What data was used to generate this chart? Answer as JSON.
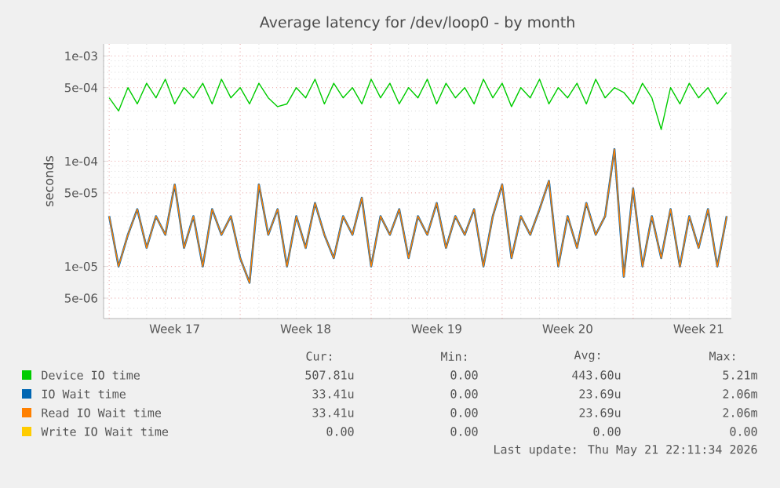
{
  "chart_data": {
    "type": "line",
    "title": "Average latency for /dev/loop0 - by month",
    "ylabel": "seconds",
    "log": true,
    "grid": true,
    "legend": "bottom",
    "ylim": [
      3.2e-06,
      0.0013
    ],
    "yticks": [
      {
        "value": 5e-06,
        "label": "5e-06"
      },
      {
        "value": 1e-05,
        "label": "1e-05"
      },
      {
        "value": 5e-05,
        "label": "5e-05"
      },
      {
        "value": 0.0001,
        "label": "1e-04"
      },
      {
        "value": 0.0005,
        "label": "5e-04"
      },
      {
        "value": 0.001,
        "label": "1e-03"
      }
    ],
    "categories": [
      null,
      null,
      null,
      null,
      null,
      null,
      null,
      "Week 17",
      null,
      null,
      null,
      null,
      null,
      null,
      null,
      null,
      null,
      null,
      null,
      null,
      null,
      "Week 18",
      null,
      null,
      null,
      null,
      null,
      null,
      null,
      null,
      null,
      null,
      null,
      null,
      null,
      "Week 19",
      null,
      null,
      null,
      null,
      null,
      null,
      null,
      null,
      null,
      null,
      null,
      null,
      null,
      "Week 20",
      null,
      null,
      null,
      null,
      null,
      null,
      null,
      null,
      null,
      null,
      null,
      null,
      null,
      "Week 21",
      null,
      null,
      null
    ],
    "series": [
      {
        "name": "Device IO time",
        "color": "#00cc00",
        "values": [
          0.0004,
          0.0003,
          0.0005,
          0.00035,
          0.00055,
          0.0004,
          0.0006,
          0.00035,
          0.0005,
          0.0004,
          0.00055,
          0.00035,
          0.0006,
          0.0004,
          0.0005,
          0.00035,
          0.00055,
          0.0004,
          0.00033,
          0.00035,
          0.0005,
          0.0004,
          0.0006,
          0.00035,
          0.00055,
          0.0004,
          0.0005,
          0.00035,
          0.0006,
          0.0004,
          0.00055,
          0.00035,
          0.0005,
          0.0004,
          0.0006,
          0.00035,
          0.00055,
          0.0004,
          0.0005,
          0.00035,
          0.0006,
          0.0004,
          0.00055,
          0.00033,
          0.0005,
          0.0004,
          0.0006,
          0.00035,
          0.0005,
          0.0004,
          0.00055,
          0.00035,
          0.0006,
          0.0004,
          0.0005,
          0.00045,
          0.00035,
          0.00055,
          0.0004,
          0.0002,
          0.0005,
          0.00035,
          0.00055,
          0.0004,
          0.0005,
          0.00035,
          0.00045
        ]
      },
      {
        "name": "IO Wait time",
        "color": "#0066b3",
        "values": [
          3e-05,
          1e-05,
          2e-05,
          3.5e-05,
          1.5e-05,
          3e-05,
          2e-05,
          6e-05,
          1.5e-05,
          3e-05,
          1e-05,
          3.5e-05,
          2e-05,
          3e-05,
          1.2e-05,
          7e-06,
          6e-05,
          2e-05,
          3.5e-05,
          1e-05,
          3e-05,
          1.5e-05,
          4e-05,
          2e-05,
          1.2e-05,
          3e-05,
          2e-05,
          4.5e-05,
          1e-05,
          3e-05,
          2e-05,
          3.5e-05,
          1.2e-05,
          3e-05,
          2e-05,
          4e-05,
          1.5e-05,
          3e-05,
          2e-05,
          3.5e-05,
          1e-05,
          3e-05,
          6e-05,
          1.2e-05,
          3e-05,
          2e-05,
          3.5e-05,
          6.5e-05,
          1e-05,
          3e-05,
          1.5e-05,
          4e-05,
          2e-05,
          3e-05,
          0.00013,
          8e-06,
          5.5e-05,
          1e-05,
          3e-05,
          1.2e-05,
          3.5e-05,
          1e-05,
          3e-05,
          1.5e-05,
          3.5e-05,
          1e-05,
          3e-05
        ]
      },
      {
        "name": "Read IO Wait time",
        "color": "#ff8000",
        "values": [
          3e-05,
          1e-05,
          2e-05,
          3.5e-05,
          1.5e-05,
          3e-05,
          2e-05,
          6e-05,
          1.5e-05,
          3e-05,
          1e-05,
          3.5e-05,
          2e-05,
          3e-05,
          1.2e-05,
          7e-06,
          6e-05,
          2e-05,
          3.5e-05,
          1e-05,
          3e-05,
          1.5e-05,
          4e-05,
          2e-05,
          1.2e-05,
          3e-05,
          2e-05,
          4.5e-05,
          1e-05,
          3e-05,
          2e-05,
          3.5e-05,
          1.2e-05,
          3e-05,
          2e-05,
          4e-05,
          1.5e-05,
          3e-05,
          2e-05,
          3.5e-05,
          1e-05,
          3e-05,
          6e-05,
          1.2e-05,
          3e-05,
          2e-05,
          3.5e-05,
          6.5e-05,
          1e-05,
          3e-05,
          1.5e-05,
          4e-05,
          2e-05,
          3e-05,
          0.00013,
          8e-06,
          5.5e-05,
          1e-05,
          3e-05,
          1.2e-05,
          3.5e-05,
          1e-05,
          3e-05,
          1.5e-05,
          3.5e-05,
          1e-05,
          3e-05
        ]
      },
      {
        "name": "Write IO Wait time",
        "color": "#ffcc00",
        "values": [
          null,
          null,
          null,
          null,
          null,
          null,
          null,
          null,
          null,
          null,
          null,
          null,
          null,
          null,
          null,
          null,
          null,
          null,
          null,
          null,
          null,
          null,
          null,
          null,
          null,
          null,
          null,
          null,
          null,
          null,
          null,
          null,
          null,
          null,
          null,
          null,
          null,
          null,
          null,
          null,
          null,
          null,
          null,
          null,
          null,
          null,
          null,
          null,
          null,
          null,
          null,
          null,
          null,
          null,
          null,
          null,
          null,
          null,
          null,
          null,
          null,
          null,
          null,
          null,
          null,
          null,
          null
        ]
      }
    ],
    "annotations": [
      "Cur:",
      "Min:",
      "Avg:",
      "Max:",
      "507.81u",
      "0.00",
      "443.60u",
      "5.21m",
      "33.41u",
      "0.00",
      "23.69u",
      "2.06m",
      "33.41u",
      "0.00",
      "23.69u",
      "2.06m",
      "0.00",
      "0.00",
      "0.00",
      "0.00",
      "Last update: Thu May 21 22:11:34 2026"
    ]
  }
}
